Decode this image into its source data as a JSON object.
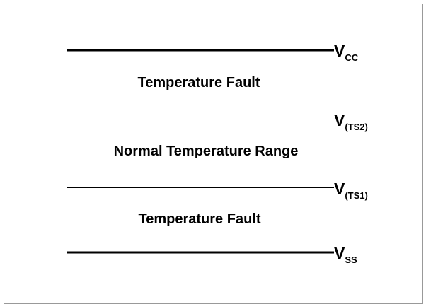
{
  "levels": [
    {
      "symbol": "V",
      "subscript": "CC"
    },
    {
      "symbol": "V",
      "subscript": "(TS2)"
    },
    {
      "symbol": "V",
      "subscript": "(TS1)"
    },
    {
      "symbol": "V",
      "subscript": "SS"
    }
  ],
  "regions": [
    {
      "label": "Temperature Fault"
    },
    {
      "label": "Normal Temperature Range"
    },
    {
      "label": "Temperature Fault"
    }
  ]
}
